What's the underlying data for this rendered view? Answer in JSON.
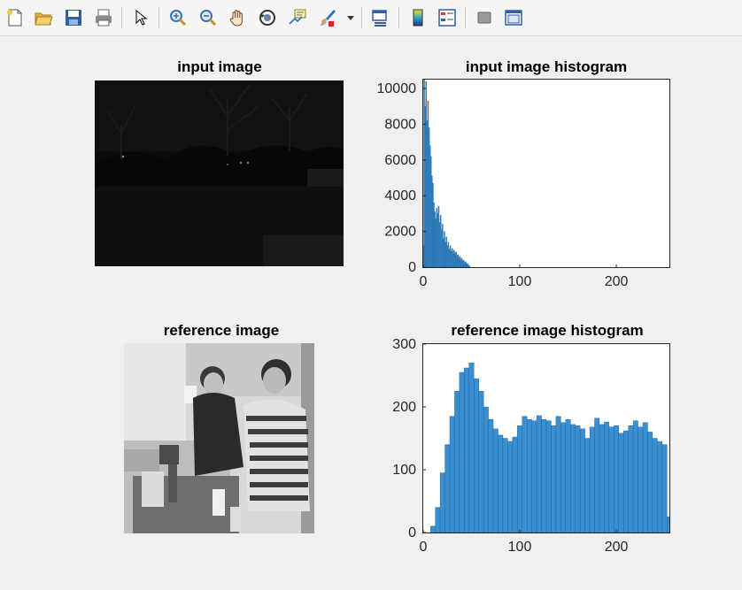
{
  "toolbar": {
    "icons": [
      "new-figure-icon",
      "open-file-icon",
      "save-icon",
      "print-icon",
      "arrow-pointer-icon",
      "zoom-in-icon",
      "zoom-out-icon",
      "pan-hand-icon",
      "rotate-3d-icon",
      "data-cursor-icon",
      "brush-icon",
      "brush-dropdown-icon",
      "link-plot-icon",
      "colorbar-icon",
      "legend-icon",
      "hide-plot-tools-icon",
      "show-plot-tools-icon"
    ]
  },
  "panels": {
    "input_image_title": "input image",
    "reference_image_title": "reference image"
  },
  "chart_data": [
    {
      "type": "bar",
      "title": "input image histogram",
      "xlabel": "",
      "ylabel": "",
      "xlim": [
        0,
        255
      ],
      "ylim": [
        0,
        10500
      ],
      "xticks": [
        0,
        100,
        200
      ],
      "yticks": [
        0,
        2000,
        4000,
        6000,
        8000,
        10000
      ],
      "color": "#3a8fd0",
      "x": [
        0,
        1,
        2,
        3,
        4,
        5,
        6,
        7,
        8,
        9,
        10,
        11,
        12,
        13,
        14,
        15,
        16,
        17,
        18,
        19,
        20,
        21,
        22,
        23,
        24,
        25,
        26,
        27,
        28,
        29,
        30,
        31,
        32,
        33,
        34,
        35,
        36,
        37,
        38,
        39,
        40,
        41,
        42,
        43,
        44,
        45,
        46,
        47,
        48
      ],
      "values": [
        1200,
        10500,
        9000,
        10400,
        8200,
        9300,
        7800,
        6800,
        6200,
        5100,
        4700,
        3600,
        3100,
        2700,
        3300,
        3000,
        3400,
        2500,
        2900,
        2100,
        2400,
        1600,
        2000,
        1400,
        1700,
        1200,
        1400,
        1000,
        1200,
        900,
        1050,
        850,
        950,
        750,
        850,
        650,
        700,
        550,
        600,
        450,
        500,
        350,
        380,
        250,
        300,
        180,
        200,
        100,
        60
      ]
    },
    {
      "type": "bar",
      "title": "reference image histogram",
      "xlabel": "",
      "ylabel": "",
      "xlim": [
        0,
        255
      ],
      "ylim": [
        0,
        300
      ],
      "xticks": [
        0,
        100,
        200
      ],
      "yticks": [
        0,
        100,
        200,
        300
      ],
      "color": "#3a8fd0",
      "x": [
        10,
        15,
        20,
        25,
        30,
        35,
        40,
        45,
        50,
        55,
        60,
        65,
        70,
        75,
        80,
        85,
        90,
        95,
        100,
        105,
        110,
        115,
        120,
        125,
        130,
        135,
        140,
        145,
        150,
        155,
        160,
        165,
        170,
        175,
        180,
        185,
        190,
        195,
        200,
        205,
        210,
        215,
        220,
        225,
        230,
        235,
        240,
        245,
        250,
        255
      ],
      "values": [
        10,
        40,
        95,
        140,
        185,
        225,
        255,
        262,
        270,
        245,
        225,
        200,
        180,
        165,
        155,
        150,
        145,
        152,
        170,
        185,
        180,
        178,
        186,
        180,
        178,
        170,
        185,
        175,
        180,
        172,
        170,
        165,
        150,
        168,
        182,
        172,
        176,
        168,
        170,
        158,
        162,
        170,
        178,
        168,
        175,
        160,
        150,
        145,
        140,
        25
      ]
    }
  ]
}
